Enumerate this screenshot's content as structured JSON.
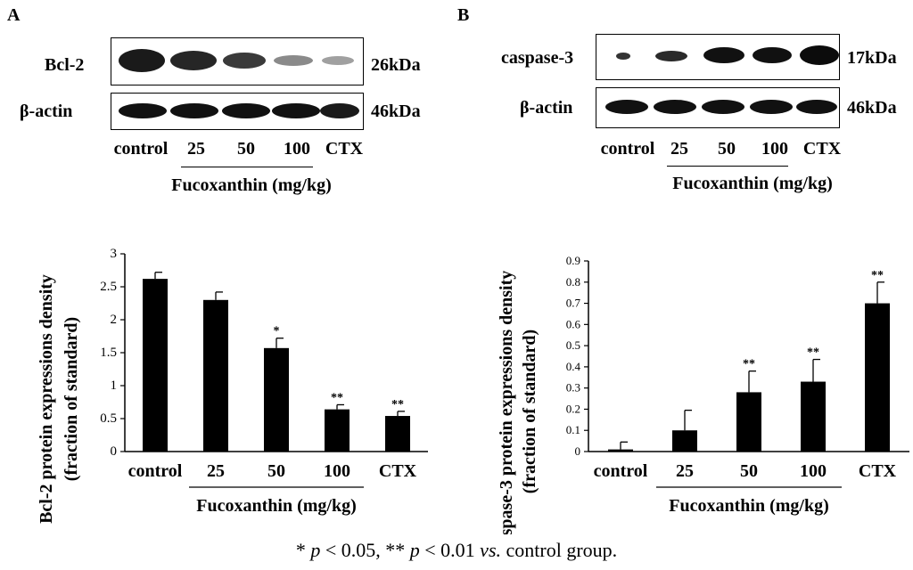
{
  "panels": [
    {
      "letter": "A",
      "blot": {
        "target_label": "Bcl-2",
        "target_kda": "26kDa",
        "actin_label": "β-actin",
        "actin_kda": "46kDa",
        "lanes": [
          "control",
          "25",
          "50",
          "100",
          "CTX"
        ],
        "group_label": "Fucoxanthin (mg/kg)"
      }
    },
    {
      "letter": "B",
      "blot": {
        "target_label": "caspase-3",
        "target_kda": "17kDa",
        "actin_label": "β-actin",
        "actin_kda": "46kDa",
        "lanes": [
          "control",
          "25",
          "50",
          "100",
          "CTX"
        ],
        "group_label": "Fucoxanthin (mg/kg)"
      }
    }
  ],
  "chart_data": [
    {
      "type": "bar",
      "categories": [
        "control",
        "25",
        "50",
        "100",
        "CTX"
      ],
      "values": [
        2.62,
        2.3,
        1.57,
        0.64,
        0.54
      ],
      "errors": [
        0.1,
        0.12,
        0.15,
        0.07,
        0.07
      ],
      "significance": [
        "",
        "",
        "*",
        "**",
        "**"
      ],
      "ylabel": "Bcl-2 protein expressions density",
      "ylabel2": "(fraction of standard)",
      "ylim": [
        0,
        3
      ],
      "yticks": [
        "0",
        "0.5",
        "1",
        "1.5",
        "2",
        "2.5",
        "3"
      ],
      "group_label": "Fucoxanthin (mg/kg)",
      "bar_color": "#000000"
    },
    {
      "type": "bar",
      "categories": [
        "control",
        "25",
        "50",
        "100",
        "CTX"
      ],
      "values": [
        0.01,
        0.1,
        0.28,
        0.33,
        0.7
      ],
      "errors": [
        0.035,
        0.095,
        0.1,
        0.105,
        0.1
      ],
      "significance": [
        "",
        "",
        "**",
        "**",
        "**"
      ],
      "ylabel": "caspase-3 protein expressions density",
      "ylabel2": "(fraction of standard)",
      "ylim": [
        0,
        0.9
      ],
      "yticks": [
        "0",
        "0.1",
        "0.2",
        "0.3",
        "0.4",
        "0.5",
        "0.6",
        "0.7",
        "0.8",
        "0.9"
      ],
      "group_label": "Fucoxanthin (mg/kg)",
      "bar_color": "#000000"
    }
  ],
  "footnote": {
    "part1": "* ",
    "p1": "p",
    "part2": " < 0.05, ** ",
    "p2": "p",
    "part3": " < 0.01 ",
    "vs": "vs.",
    "part4": " control group."
  }
}
